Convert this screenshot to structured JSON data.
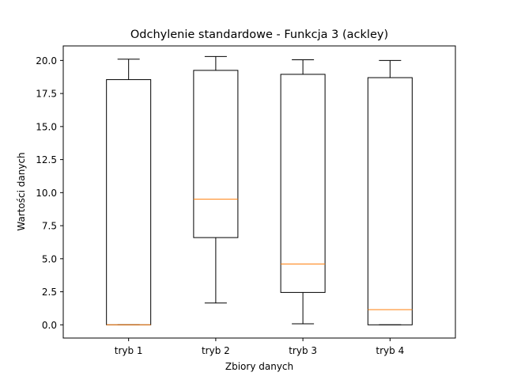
{
  "chart_data": {
    "type": "box",
    "title": "Odchylenie standardowe - Funkcja 3 (ackley)",
    "xlabel": "Zbiory danych",
    "ylabel": "Wartości danych",
    "categories": [
      "tryb 1",
      "tryb 2",
      "tryb 3",
      "tryb 4"
    ],
    "boxes": [
      {
        "label": "tryb 1",
        "whisker_low": 0.0,
        "q1": 0.0,
        "median": 0.0,
        "q3": 18.55,
        "whisker_high": 20.1
      },
      {
        "label": "tryb 2",
        "whisker_low": 1.65,
        "q1": 6.6,
        "median": 9.5,
        "q3": 19.25,
        "whisker_high": 20.3
      },
      {
        "label": "tryb 3",
        "whisker_low": 0.08,
        "q1": 2.45,
        "median": 4.6,
        "q3": 18.95,
        "whisker_high": 20.05
      },
      {
        "label": "tryb 4",
        "whisker_low": 0.0,
        "q1": 0.0,
        "median": 1.15,
        "q3": 18.7,
        "whisker_high": 20.0
      }
    ],
    "ylim": [
      -1.0,
      21.1
    ],
    "yticks": [
      "0.0",
      "2.5",
      "5.0",
      "7.5",
      "10.0",
      "12.5",
      "15.0",
      "17.5",
      "20.0"
    ],
    "grid": false,
    "colors": {
      "box": "#000000",
      "median": "#ff7f0e"
    }
  }
}
